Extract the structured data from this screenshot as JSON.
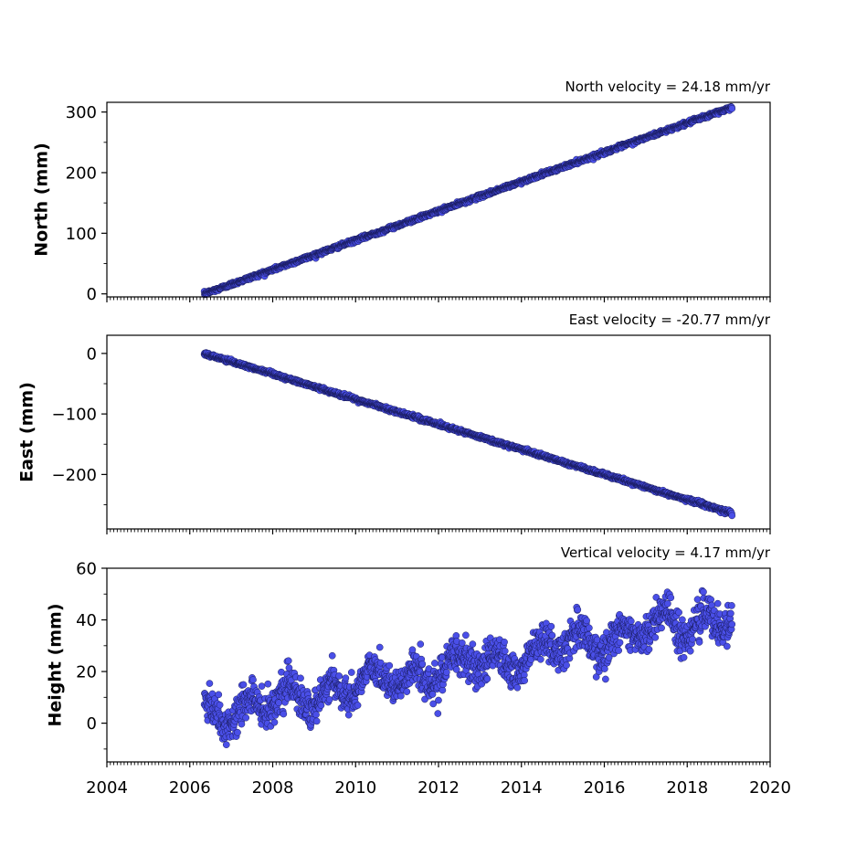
{
  "chart_data": [
    {
      "type": "scatter",
      "ylabel": "North (mm)",
      "annotation": "North velocity = 24.18 mm/yr",
      "x_range": [
        2004,
        2020
      ],
      "ylim": [
        -5,
        316
      ],
      "y_ticks": [
        0,
        100,
        200,
        300
      ],
      "y_tick_labels": [
        "0",
        "100",
        "200",
        "300"
      ],
      "x_ticks": [
        2004,
        2006,
        2008,
        2010,
        2012,
        2014,
        2016,
        2018,
        2020
      ],
      "x_tick_labels": [],
      "series": [
        {
          "x_start": 2006.35,
          "x_end": 2019.08,
          "y_start": 0,
          "y_end": 308,
          "trend_mm_per_yr": 24.18,
          "scatter_mm": 1.5,
          "seasonal_mm": 0
        }
      ],
      "marker_color": "#4a4fe8",
      "marker_edge": "#141650",
      "grid": false
    },
    {
      "type": "scatter",
      "ylabel": "East (mm)",
      "annotation": "East velocity = -20.77 mm/yr",
      "x_range": [
        2004,
        2020
      ],
      "ylim": [
        -290,
        30
      ],
      "y_ticks": [
        0,
        -100,
        -200
      ],
      "y_tick_labels": [
        "0",
        "−100",
        "−200"
      ],
      "x_ticks": [
        2004,
        2006,
        2008,
        2010,
        2012,
        2014,
        2016,
        2018,
        2020
      ],
      "x_tick_labels": [],
      "series": [
        {
          "x_start": 2006.35,
          "x_end": 2019.08,
          "y_start": 0,
          "y_end": -264,
          "trend_mm_per_yr": -20.77,
          "scatter_mm": 1.5,
          "seasonal_mm": 0
        }
      ],
      "marker_color": "#4a4fe8",
      "marker_edge": "#141650",
      "grid": false
    },
    {
      "type": "scatter",
      "ylabel": "Height (mm)",
      "annotation": "Vertical velocity = 4.17 mm/yr",
      "x_range": [
        2004,
        2020
      ],
      "ylim": [
        -15,
        60
      ],
      "y_ticks": [
        0,
        20,
        40,
        60
      ],
      "y_tick_labels": [
        "0",
        "20",
        "40",
        "60"
      ],
      "x_ticks": [
        2004,
        2006,
        2008,
        2010,
        2012,
        2014,
        2016,
        2018,
        2020
      ],
      "x_tick_labels": [
        "2004",
        "2006",
        "2008",
        "2010",
        "2012",
        "2014",
        "2016",
        "2018",
        "2020"
      ],
      "series": [
        {
          "x_start": 2006.35,
          "x_end": 2019.08,
          "y_start": 3,
          "y_end": 42,
          "trend_mm_per_yr": 4.17,
          "scatter_mm": 3.5,
          "seasonal_mm": 4.5
        }
      ],
      "marker_color": "#4a4fe8",
      "marker_edge": "#141650",
      "grid": false
    }
  ]
}
